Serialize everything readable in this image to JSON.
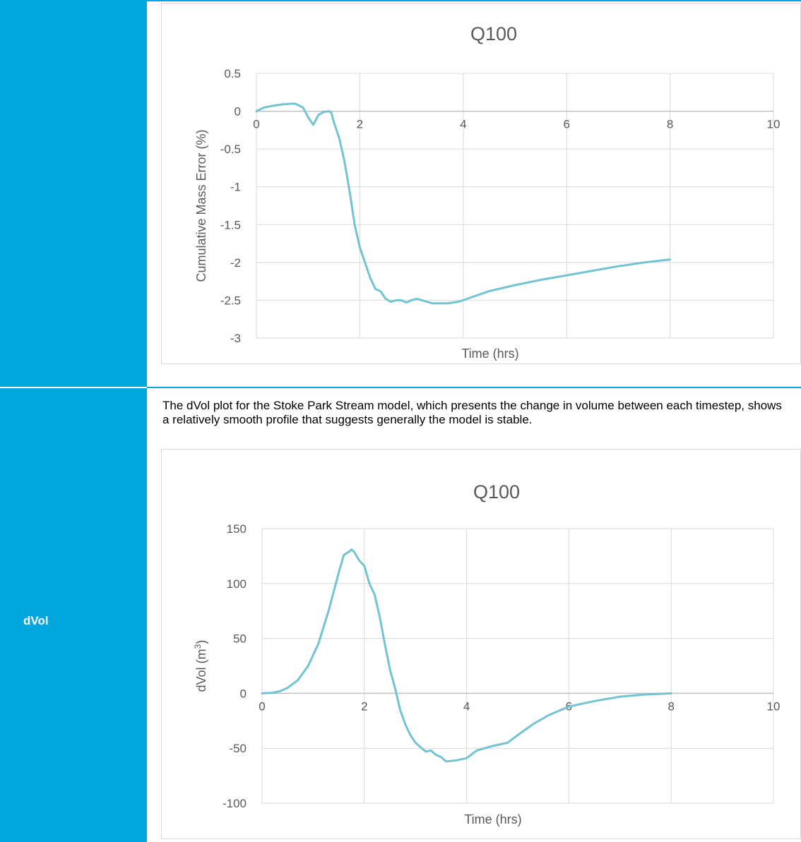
{
  "sidebar": {
    "row_label": "dVol",
    "color": "#00a6de"
  },
  "description": "The dVol plot for the Stoke Park Stream model, which presents the change in volume between each timestep, shows a relatively smooth profile that suggests generally the model is stable.",
  "chart_data": [
    {
      "type": "line",
      "title": "Q100",
      "xlabel": "Time (hrs)",
      "ylabel": "Cumulative Mass Error (%)",
      "xlim": [
        0,
        10
      ],
      "ylim": [
        -3,
        0.5
      ],
      "xticks": [
        0,
        2,
        4,
        6,
        8,
        10
      ],
      "yticks": [
        0.5,
        0,
        -0.5,
        -1,
        -1.5,
        -2,
        -2.5,
        -3
      ],
      "xtick_labels": [
        "0",
        "2",
        "4",
        "6",
        "8",
        "10"
      ],
      "ytick_labels": [
        "0.5",
        "0",
        "-0.5",
        "-1",
        "-1.5",
        "-2",
        "-2.5",
        "-3"
      ],
      "grid": true,
      "line_color": "#72c4d2",
      "x": [
        0,
        0.15,
        0.3,
        0.5,
        0.7,
        0.75,
        0.9,
        1.0,
        1.1,
        1.2,
        1.3,
        1.4,
        1.45,
        1.5,
        1.6,
        1.7,
        1.8,
        1.9,
        2.0,
        2.1,
        2.2,
        2.3,
        2.4,
        2.5,
        2.6,
        2.7,
        2.8,
        2.9,
        3.0,
        3.1,
        3.2,
        3.3,
        3.4,
        3.5,
        3.6,
        3.7,
        3.8,
        3.9,
        4.0,
        4.2,
        4.5,
        5.0,
        5.5,
        6.0,
        6.5,
        7.0,
        7.5,
        8.0
      ],
      "y": [
        0,
        0.05,
        0.07,
        0.09,
        0.1,
        0.1,
        0.05,
        -0.08,
        -0.18,
        -0.05,
        -0.01,
        0,
        -0.02,
        -0.15,
        -0.35,
        -0.65,
        -1.05,
        -1.5,
        -1.8,
        -2.0,
        -2.2,
        -2.35,
        -2.38,
        -2.48,
        -2.52,
        -2.5,
        -2.5,
        -2.53,
        -2.5,
        -2.48,
        -2.5,
        -2.52,
        -2.54,
        -2.54,
        -2.54,
        -2.54,
        -2.53,
        -2.52,
        -2.5,
        -2.45,
        -2.38,
        -2.3,
        -2.23,
        -2.17,
        -2.11,
        -2.05,
        -2.0,
        -1.96
      ]
    },
    {
      "type": "line",
      "title": "Q100",
      "xlabel": "Time (hrs)",
      "ylabel": "dVol (m",
      "ylabel_sup": "3",
      "ylabel_end": ")",
      "xlim": [
        0,
        10
      ],
      "ylim": [
        -100,
        150
      ],
      "xticks": [
        0,
        2,
        4,
        6,
        8,
        10
      ],
      "yticks": [
        150,
        100,
        50,
        0,
        -50,
        -100
      ],
      "xtick_labels": [
        "0",
        "2",
        "4",
        "6",
        "8",
        "10"
      ],
      "ytick_labels": [
        "150",
        "100",
        "50",
        "0",
        "-50",
        "-100"
      ],
      "grid": true,
      "line_color": "#72c4d2",
      "x": [
        0,
        0.2,
        0.35,
        0.5,
        0.7,
        0.9,
        1.1,
        1.3,
        1.5,
        1.6,
        1.7,
        1.75,
        1.8,
        1.9,
        2.0,
        2.1,
        2.2,
        2.3,
        2.4,
        2.5,
        2.6,
        2.7,
        2.8,
        2.9,
        3.0,
        3.1,
        3.2,
        3.3,
        3.4,
        3.5,
        3.6,
        3.8,
        4.0,
        4.2,
        4.5,
        4.8,
        5.0,
        5.3,
        5.6,
        6.0,
        6.5,
        7.0,
        7.5,
        8.0
      ],
      "y": [
        0,
        0.5,
        2,
        5,
        12,
        25,
        45,
        75,
        110,
        126,
        129,
        131,
        129,
        121,
        116,
        100,
        90,
        70,
        45,
        22,
        5,
        -15,
        -28,
        -38,
        -45,
        -49,
        -53,
        -52,
        -56,
        -58,
        -62,
        -61,
        -59,
        -52,
        -48,
        -45,
        -38,
        -28,
        -20,
        -12,
        -7,
        -3,
        -1,
        0
      ]
    }
  ]
}
